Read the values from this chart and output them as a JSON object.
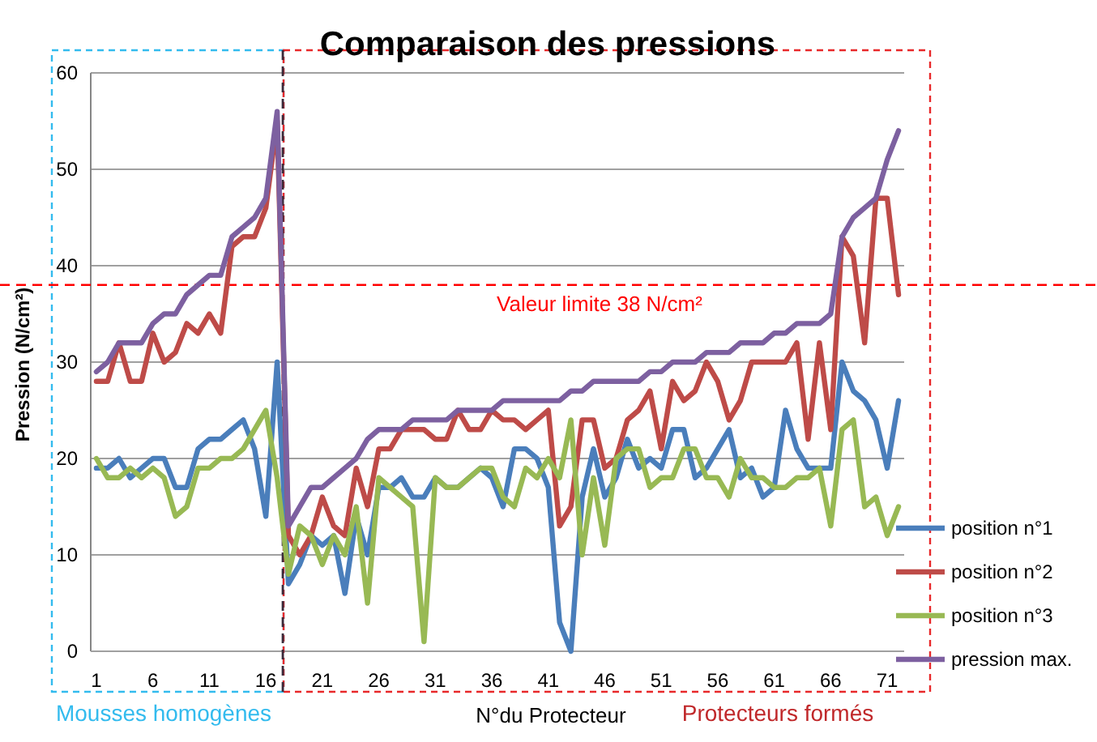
{
  "chart_data": {
    "type": "line",
    "title": "Comparaison des pressions",
    "xlabel": "N°du Protecteur",
    "ylabel": "Pression (N/cm²)",
    "x": [
      1,
      2,
      3,
      4,
      5,
      6,
      7,
      8,
      9,
      10,
      11,
      12,
      13,
      14,
      15,
      16,
      17,
      18,
      19,
      20,
      21,
      22,
      23,
      24,
      25,
      26,
      27,
      28,
      29,
      30,
      31,
      32,
      33,
      34,
      35,
      36,
      37,
      38,
      39,
      40,
      41,
      42,
      43,
      44,
      45,
      46,
      47,
      48,
      49,
      50,
      51,
      52,
      53,
      54,
      55,
      56,
      57,
      58,
      59,
      60,
      61,
      62,
      63,
      64,
      65,
      66,
      67,
      68,
      69,
      70,
      71,
      72
    ],
    "xlim": [
      0.5,
      72.5
    ],
    "xticks": [
      1,
      6,
      11,
      16,
      21,
      26,
      31,
      36,
      41,
      46,
      51,
      56,
      61,
      66,
      71
    ],
    "series": [
      {
        "name": "position n°1",
        "color": "#4a7ebb",
        "values": [
          19,
          19,
          20,
          18,
          19,
          20,
          20,
          17,
          17,
          21,
          22,
          22,
          23,
          24,
          21,
          14,
          30,
          7,
          9,
          12,
          11,
          12,
          6,
          14,
          10,
          17,
          17,
          18,
          16,
          16,
          18,
          17,
          17,
          18,
          19,
          18,
          15,
          21,
          21,
          20,
          17,
          3,
          0,
          16,
          21,
          16,
          18,
          22,
          19,
          20,
          19,
          23,
          23,
          18,
          19,
          21,
          23,
          18,
          19,
          16,
          17,
          25,
          21,
          19,
          19,
          19,
          30,
          27,
          26,
          24,
          19,
          26
        ]
      },
      {
        "name": "position n°2",
        "color": "#be4b48",
        "values": [
          28,
          28,
          32,
          28,
          28,
          33,
          30,
          31,
          34,
          33,
          35,
          33,
          42,
          43,
          43,
          46,
          55,
          12,
          10,
          12,
          16,
          13,
          12,
          19,
          15,
          21,
          21,
          23,
          23,
          23,
          22,
          22,
          25,
          23,
          23,
          25,
          24,
          24,
          23,
          24,
          25,
          13,
          15,
          24,
          24,
          19,
          20,
          24,
          25,
          27,
          21,
          28,
          26,
          27,
          30,
          28,
          24,
          26,
          30,
          30,
          30,
          30,
          32,
          22,
          32,
          23,
          43,
          41,
          32,
          47,
          47,
          37
        ]
      },
      {
        "name": "position n°3",
        "color": "#98b954",
        "values": [
          20,
          18,
          18,
          19,
          18,
          19,
          18,
          14,
          15,
          19,
          19,
          20,
          20,
          21,
          23,
          25,
          18,
          8,
          13,
          12,
          9,
          12,
          10,
          15,
          5,
          18,
          17,
          16,
          15,
          1,
          18,
          17,
          17,
          18,
          19,
          19,
          16,
          15,
          19,
          18,
          20,
          18,
          24,
          10,
          18,
          11,
          20,
          21,
          21,
          17,
          18,
          18,
          21,
          21,
          18,
          18,
          16,
          20,
          18,
          18,
          17,
          17,
          18,
          18,
          19,
          13,
          23,
          24,
          15,
          16,
          12,
          15
        ]
      },
      {
        "name": "pression max.",
        "color": "#7d60a0",
        "values": [
          29,
          30,
          32,
          32,
          32,
          34,
          35,
          35,
          37,
          38,
          39,
          39,
          43,
          44,
          45,
          47,
          56,
          13,
          15,
          17,
          17,
          18,
          19,
          20,
          22,
          23,
          23,
          23,
          24,
          24,
          24,
          24,
          25,
          25,
          25,
          25,
          26,
          26,
          26,
          26,
          26,
          26,
          27,
          27,
          28,
          28,
          28,
          28,
          28,
          29,
          29,
          30,
          30,
          30,
          31,
          31,
          31,
          32,
          32,
          32,
          33,
          33,
          34,
          34,
          34,
          35,
          43,
          45,
          46,
          47,
          51,
          54
        ]
      }
    ],
    "ylim": [
      0,
      60
    ],
    "yticks": [
      0,
      10,
      20,
      30,
      40,
      50,
      60
    ],
    "grid": "y",
    "legend": "right",
    "line_style": "solid",
    "ref_lines": [
      {
        "axis": "x",
        "value": 17.5,
        "color": "#3a2a3a",
        "line_style": "dashed"
      },
      {
        "axis": "y",
        "value": 38,
        "label": "Valeur limite 38 N/cm²",
        "color": "#ff0000",
        "line_style": "dashed"
      }
    ],
    "annotations": [
      "Mousses homogènes",
      "Protecteurs formés"
    ]
  }
}
